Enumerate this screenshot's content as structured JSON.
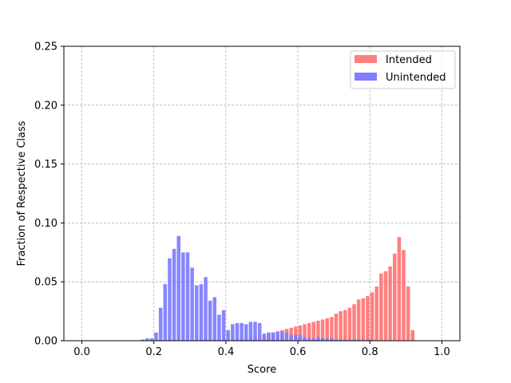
{
  "chart_data": {
    "type": "bar",
    "title": "",
    "xlabel": "Score",
    "ylabel": "Fraction of Respective Class",
    "xlim": [
      -0.05,
      1.05
    ],
    "ylim": [
      0,
      0.25
    ],
    "xticks": [
      "0.0",
      "0.2",
      "0.4",
      "0.6",
      "0.8",
      "1.0"
    ],
    "xtick_values": [
      0.0,
      0.2,
      0.4,
      0.6,
      0.8,
      1.0
    ],
    "yticks": [
      "0.00",
      "0.05",
      "0.10",
      "0.15",
      "0.20",
      "0.25"
    ],
    "ytick_values": [
      0.0,
      0.05,
      0.1,
      0.15,
      0.2,
      0.25
    ],
    "grid": true,
    "legend_position": "top-right",
    "bin_width": 0.0125,
    "bin_starts": [
      0.1625,
      0.175,
      0.1875,
      0.2,
      0.2125,
      0.225,
      0.2375,
      0.25,
      0.2625,
      0.275,
      0.2875,
      0.3,
      0.3125,
      0.325,
      0.3375,
      0.35,
      0.3625,
      0.375,
      0.3875,
      0.4,
      0.4125,
      0.425,
      0.4375,
      0.45,
      0.4625,
      0.475,
      0.4875,
      0.5,
      0.5125,
      0.525,
      0.5375,
      0.55,
      0.5625,
      0.575,
      0.5875,
      0.6,
      0.6125,
      0.625,
      0.6375,
      0.65,
      0.6625,
      0.675,
      0.6875,
      0.7,
      0.7125,
      0.725,
      0.7375,
      0.75,
      0.7625,
      0.775,
      0.7875,
      0.8,
      0.8125,
      0.825,
      0.8375,
      0.85,
      0.8625,
      0.875,
      0.8875,
      0.9,
      0.9125,
      0.925,
      0.9375
    ],
    "series": [
      {
        "name": "Intended",
        "color": "#ff7f7f",
        "values": [
          0,
          0,
          0,
          0,
          0,
          0,
          0,
          0,
          0,
          0,
          0,
          0,
          0.001,
          0,
          0.001,
          0.001,
          0.001,
          0.001,
          0.001,
          0.001,
          0.001,
          0.001,
          0.002,
          0.002,
          0.003,
          0.003,
          0.004,
          0.004,
          0.006,
          0.007,
          0.007,
          0.009,
          0.01,
          0.011,
          0.012,
          0.013,
          0.014,
          0.015,
          0.016,
          0.017,
          0.018,
          0.019,
          0.02,
          0.023,
          0.025,
          0.026,
          0.028,
          0.031,
          0.035,
          0.036,
          0.038,
          0.041,
          0.046,
          0.057,
          0.059,
          0.063,
          0.074,
          0.088,
          0.077,
          0.046,
          0.009,
          0,
          0
        ]
      },
      {
        "name": "Unintended",
        "color": "#7f7fff",
        "values": [
          0.001,
          0.002,
          0.002,
          0.007,
          0.028,
          0.048,
          0.07,
          0.078,
          0.089,
          0.075,
          0.075,
          0.062,
          0.047,
          0.048,
          0.054,
          0.034,
          0.037,
          0.022,
          0.026,
          0.009,
          0.014,
          0.015,
          0.015,
          0.014,
          0.016,
          0.016,
          0.015,
          0.006,
          0.007,
          0.007,
          0.008,
          0.008,
          0.007,
          0.005,
          0.005,
          0.005,
          0.003,
          0.002,
          0.002,
          0.003,
          0.002,
          0.002,
          0.002,
          0.001,
          0.001,
          0.001,
          0.001,
          0.001,
          0.001,
          0.001,
          0.001,
          0.001,
          0,
          0,
          0,
          0,
          0,
          0,
          0,
          0,
          0,
          0,
          0
        ]
      }
    ]
  }
}
